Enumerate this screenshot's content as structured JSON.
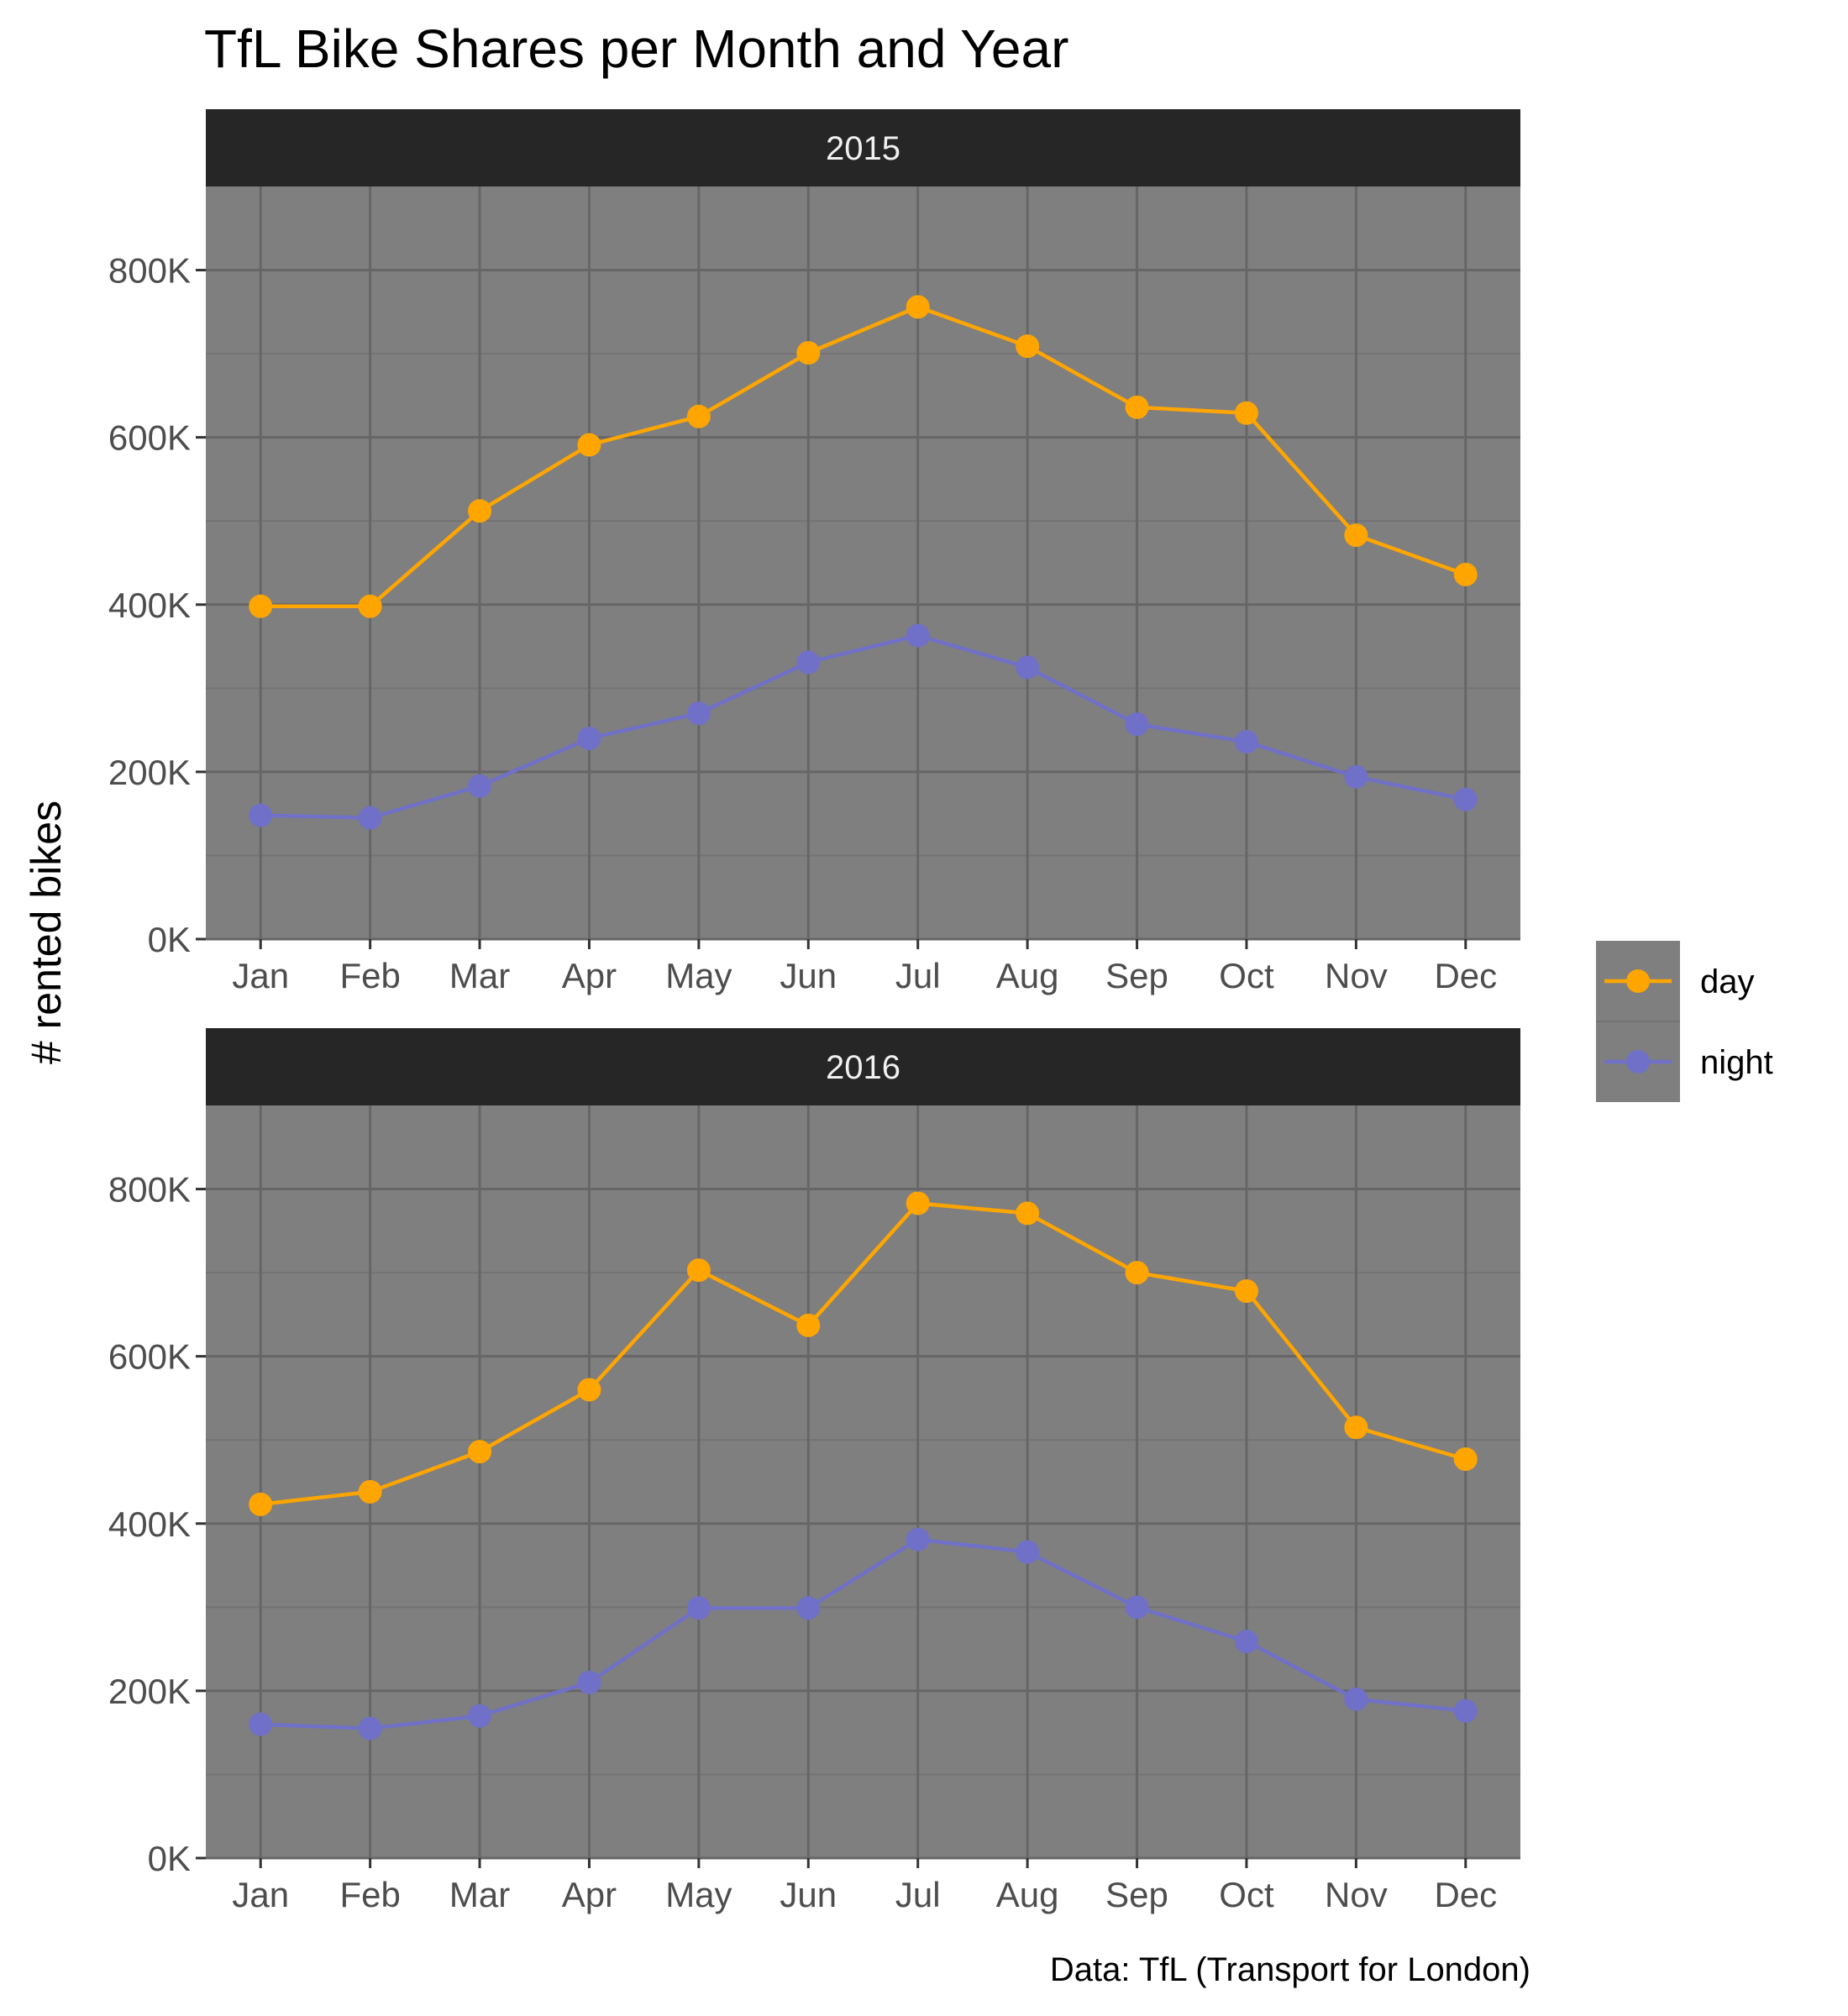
{
  "chart_data": {
    "type": "line",
    "title": "TfL Bike Shares per Month and Year",
    "ylabel": "# rented bikes",
    "xlabel": "",
    "caption": "Data: TfL (Transport for London)",
    "categories": [
      "Jan",
      "Feb",
      "Mar",
      "Apr",
      "May",
      "Jun",
      "Jul",
      "Aug",
      "Sep",
      "Oct",
      "Nov",
      "Dec"
    ],
    "ylim": [
      0,
      900000
    ],
    "yticks": [
      0,
      200000,
      400000,
      600000,
      800000
    ],
    "ytick_labels": [
      "0K",
      "200K",
      "400K",
      "600K",
      "800K"
    ],
    "grid": true,
    "legend_position": "right",
    "colors": {
      "day": "#FFA500",
      "night": "#7070C8",
      "panel": "#7F7F7F",
      "strip": "#262626"
    },
    "panels": [
      {
        "label": "2015",
        "series": [
          {
            "name": "day",
            "values": [
              398000,
              398000,
              512000,
              591000,
              625000,
              701000,
              756000,
              709000,
              636000,
              629000,
              483000,
              436000
            ]
          },
          {
            "name": "night",
            "values": [
              148000,
              145000,
              183000,
              240000,
              270000,
              331000,
              363000,
              325000,
              257000,
              236000,
              194000,
              167000
            ]
          }
        ]
      },
      {
        "label": "2016",
        "series": [
          {
            "name": "day",
            "values": [
              423000,
              438000,
              486000,
              560000,
              703000,
              637000,
              783000,
              771000,
              700000,
              678000,
              515000,
              477000
            ]
          },
          {
            "name": "night",
            "values": [
              160000,
              155000,
              170000,
              210000,
              299000,
              299000,
              381000,
              366000,
              300000,
              259000,
              190000,
              176000
            ]
          }
        ]
      }
    ]
  }
}
